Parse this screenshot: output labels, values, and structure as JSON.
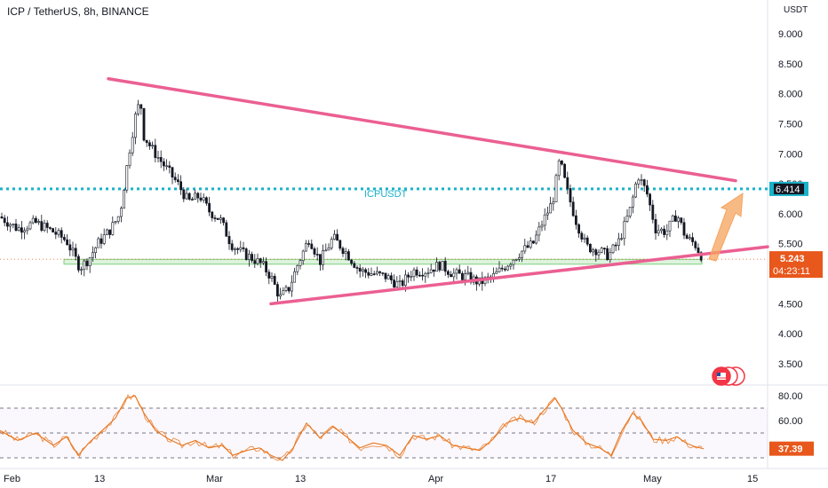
{
  "header": {
    "title": "ICP / TetherUS, 8h, BINANCE",
    "currency_unit": "USDT"
  },
  "chart_data": [
    {
      "type": "candlestick",
      "title": "ICP / TetherUS, 8h, BINANCE",
      "y_ticks": [
        "9.000",
        "8.500",
        "8.000",
        "7.500",
        "7.000",
        "6.500",
        "6.000",
        "5.500",
        "5.000",
        "4.500",
        "4.000",
        "3.500"
      ],
      "y_values": [
        9.0,
        8.5,
        8.0,
        7.5,
        7.0,
        6.5,
        6.0,
        5.5,
        5.0,
        4.5,
        4.0,
        3.5
      ],
      "ylim": [
        3.3,
        9.25
      ],
      "x_ticks": [
        "Feb",
        "13",
        "Mar",
        "13",
        "Apr",
        "17",
        "May",
        "15"
      ],
      "price_path": [
        {
          "x": 0,
          "y": 5.95
        },
        {
          "x": 20,
          "y": 5.75
        },
        {
          "x": 40,
          "y": 5.85
        },
        {
          "x": 60,
          "y": 5.7
        },
        {
          "x": 75,
          "y": 5.55
        },
        {
          "x": 90,
          "y": 5.1
        },
        {
          "x": 100,
          "y": 5.25
        },
        {
          "x": 110,
          "y": 5.5
        },
        {
          "x": 125,
          "y": 5.75
        },
        {
          "x": 135,
          "y": 6.0
        },
        {
          "x": 145,
          "y": 7.0
        },
        {
          "x": 152,
          "y": 7.6
        },
        {
          "x": 158,
          "y": 7.9
        },
        {
          "x": 162,
          "y": 7.3
        },
        {
          "x": 170,
          "y": 7.1
        },
        {
          "x": 180,
          "y": 6.9
        },
        {
          "x": 190,
          "y": 6.7
        },
        {
          "x": 200,
          "y": 6.5
        },
        {
          "x": 212,
          "y": 6.2
        },
        {
          "x": 225,
          "y": 6.3
        },
        {
          "x": 235,
          "y": 6.05
        },
        {
          "x": 248,
          "y": 5.9
        },
        {
          "x": 260,
          "y": 5.5
        },
        {
          "x": 272,
          "y": 5.35
        },
        {
          "x": 285,
          "y": 5.25
        },
        {
          "x": 295,
          "y": 5.15
        },
        {
          "x": 305,
          "y": 4.95
        },
        {
          "x": 315,
          "y": 4.6
        },
        {
          "x": 325,
          "y": 4.75
        },
        {
          "x": 335,
          "y": 5.15
        },
        {
          "x": 348,
          "y": 5.6
        },
        {
          "x": 360,
          "y": 5.2
        },
        {
          "x": 375,
          "y": 5.6
        },
        {
          "x": 390,
          "y": 5.35
        },
        {
          "x": 405,
          "y": 5.05
        },
        {
          "x": 420,
          "y": 5.0
        },
        {
          "x": 435,
          "y": 4.95
        },
        {
          "x": 450,
          "y": 4.8
        },
        {
          "x": 465,
          "y": 5.05
        },
        {
          "x": 480,
          "y": 5.05
        },
        {
          "x": 495,
          "y": 5.15
        },
        {
          "x": 510,
          "y": 5.0
        },
        {
          "x": 525,
          "y": 4.95
        },
        {
          "x": 540,
          "y": 4.85
        },
        {
          "x": 555,
          "y": 4.95
        },
        {
          "x": 570,
          "y": 5.15
        },
        {
          "x": 585,
          "y": 5.35
        },
        {
          "x": 600,
          "y": 5.5
        },
        {
          "x": 612,
          "y": 5.9
        },
        {
          "x": 622,
          "y": 6.2
        },
        {
          "x": 630,
          "y": 6.9
        },
        {
          "x": 638,
          "y": 6.4
        },
        {
          "x": 648,
          "y": 5.9
        },
        {
          "x": 660,
          "y": 5.45
        },
        {
          "x": 672,
          "y": 5.4
        },
        {
          "x": 685,
          "y": 5.3
        },
        {
          "x": 697,
          "y": 5.55
        },
        {
          "x": 710,
          "y": 6.1
        },
        {
          "x": 718,
          "y": 6.65
        },
        {
          "x": 728,
          "y": 6.35
        },
        {
          "x": 738,
          "y": 5.75
        },
        {
          "x": 750,
          "y": 5.7
        },
        {
          "x": 762,
          "y": 6.0
        },
        {
          "x": 772,
          "y": 5.6
        },
        {
          "x": 782,
          "y": 5.5
        },
        {
          "x": 792,
          "y": 5.24
        }
      ],
      "trendlines": [
        {
          "name": "upper",
          "x1": 122,
          "y1": 8.25,
          "x2": 828,
          "y2": 6.55,
          "color": "#eb5f92"
        },
        {
          "name": "lower",
          "x1": 305,
          "y1": 4.5,
          "x2": 864,
          "y2": 5.45,
          "color": "#eb5f92"
        }
      ],
      "levels": [
        {
          "label": "ICPUSDT",
          "value": 6.414,
          "display": "6.414",
          "color": "#1ab2c9"
        }
      ],
      "support_zone": {
        "low": 5.16,
        "high": 5.24,
        "color": "#7ccf7c"
      },
      "last_price": {
        "value": 5.243,
        "display": "5.243",
        "countdown": "04:23:11",
        "color": "#e8571c"
      },
      "projection_arrow_color": "#f6a35c"
    },
    {
      "type": "line",
      "name": "RSI",
      "y_ticks": [
        "80.00",
        "60.00"
      ],
      "y_values": [
        80,
        60
      ],
      "bands": [
        70,
        50,
        30
      ],
      "ylim": [
        25,
        85
      ],
      "last_value": {
        "value": 37.39,
        "display": "37.39",
        "color": "#e8571c"
      },
      "line_color": "#e8741c",
      "points": [
        {
          "x": 0,
          "y": 52
        },
        {
          "x": 20,
          "y": 44
        },
        {
          "x": 40,
          "y": 50
        },
        {
          "x": 60,
          "y": 40
        },
        {
          "x": 75,
          "y": 47
        },
        {
          "x": 88,
          "y": 32
        },
        {
          "x": 100,
          "y": 42
        },
        {
          "x": 115,
          "y": 52
        },
        {
          "x": 130,
          "y": 62
        },
        {
          "x": 142,
          "y": 78
        },
        {
          "x": 152,
          "y": 80
        },
        {
          "x": 162,
          "y": 66
        },
        {
          "x": 175,
          "y": 52
        },
        {
          "x": 190,
          "y": 45
        },
        {
          "x": 205,
          "y": 40
        },
        {
          "x": 220,
          "y": 44
        },
        {
          "x": 235,
          "y": 38
        },
        {
          "x": 250,
          "y": 40
        },
        {
          "x": 262,
          "y": 32
        },
        {
          "x": 278,
          "y": 36
        },
        {
          "x": 292,
          "y": 38
        },
        {
          "x": 305,
          "y": 32
        },
        {
          "x": 318,
          "y": 28
        },
        {
          "x": 330,
          "y": 38
        },
        {
          "x": 345,
          "y": 58
        },
        {
          "x": 360,
          "y": 46
        },
        {
          "x": 375,
          "y": 55
        },
        {
          "x": 390,
          "y": 47
        },
        {
          "x": 405,
          "y": 38
        },
        {
          "x": 420,
          "y": 42
        },
        {
          "x": 435,
          "y": 40
        },
        {
          "x": 450,
          "y": 32
        },
        {
          "x": 465,
          "y": 48
        },
        {
          "x": 480,
          "y": 45
        },
        {
          "x": 495,
          "y": 48
        },
        {
          "x": 510,
          "y": 40
        },
        {
          "x": 525,
          "y": 38
        },
        {
          "x": 540,
          "y": 36
        },
        {
          "x": 555,
          "y": 45
        },
        {
          "x": 570,
          "y": 58
        },
        {
          "x": 585,
          "y": 62
        },
        {
          "x": 600,
          "y": 58
        },
        {
          "x": 612,
          "y": 68
        },
        {
          "x": 625,
          "y": 78
        },
        {
          "x": 632,
          "y": 70
        },
        {
          "x": 645,
          "y": 52
        },
        {
          "x": 660,
          "y": 42
        },
        {
          "x": 675,
          "y": 38
        },
        {
          "x": 688,
          "y": 32
        },
        {
          "x": 700,
          "y": 52
        },
        {
          "x": 712,
          "y": 66
        },
        {
          "x": 722,
          "y": 60
        },
        {
          "x": 735,
          "y": 45
        },
        {
          "x": 750,
          "y": 44
        },
        {
          "x": 762,
          "y": 47
        },
        {
          "x": 772,
          "y": 42
        },
        {
          "x": 782,
          "y": 39
        },
        {
          "x": 792,
          "y": 37.39
        }
      ]
    }
  ]
}
